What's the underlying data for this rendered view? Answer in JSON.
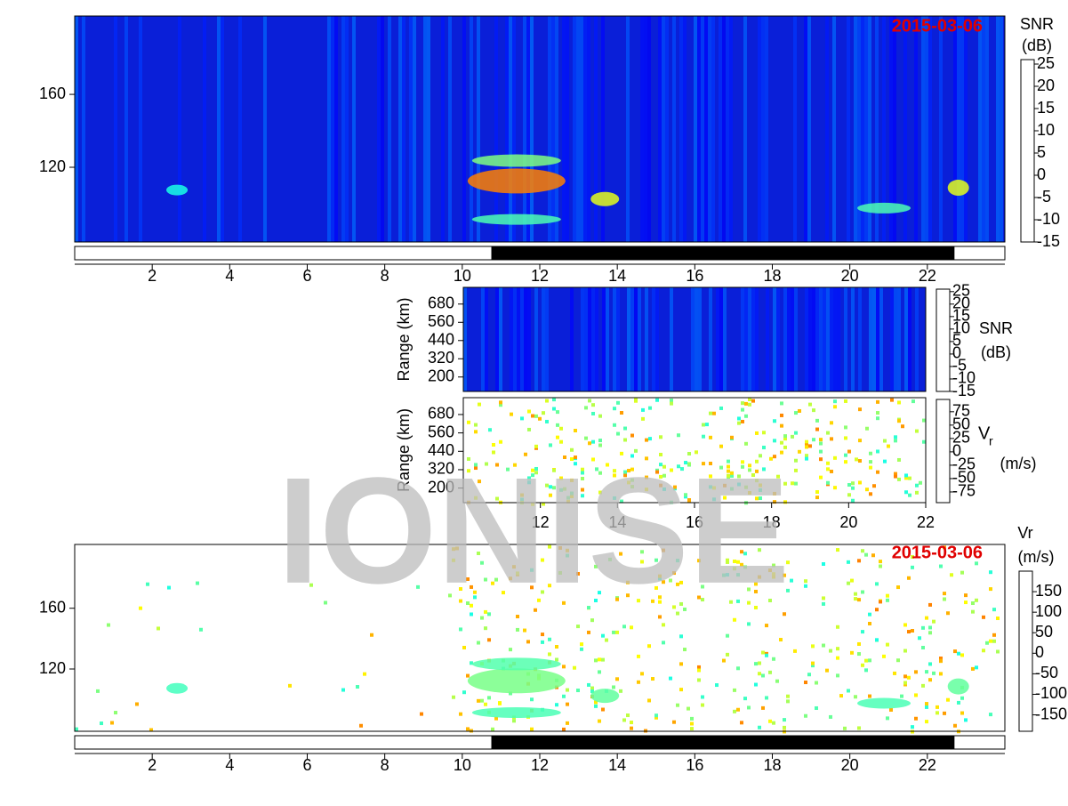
{
  "chart_data": [
    {
      "type": "heatmap",
      "kind": "snr",
      "date": "2015-03-06",
      "colorbar_label": [
        "SNR",
        "(dB)"
      ],
      "xlim": [
        0,
        24
      ],
      "xticks": [
        2,
        4,
        6,
        8,
        10,
        12,
        14,
        16,
        18,
        20,
        22
      ],
      "ylim": [
        79,
        203
      ],
      "yticks": [
        120,
        160
      ],
      "clim": [
        -15,
        26
      ],
      "cticks": [
        25,
        20,
        15,
        10,
        5,
        0,
        -5,
        -10,
        -15
      ],
      "night": [
        10.75,
        22.7
      ]
    },
    {
      "type": "heatmap",
      "kind": "snr",
      "ylabel": "Range (km)",
      "colorbar_label": [
        "SNR",
        "(dB)"
      ],
      "xlim": [
        10,
        22
      ],
      "ylim": [
        105,
        790
      ],
      "yticks": [
        200,
        320,
        440,
        560,
        680
      ],
      "clim": [
        -15,
        26
      ],
      "cticks": [
        25,
        20,
        15,
        10,
        5,
        0,
        -5,
        -10,
        -15
      ]
    },
    {
      "type": "heatmap",
      "kind": "vel",
      "ylabel": "Range (km)",
      "colorbar_label": [
        "V",
        "r",
        "(m/s)"
      ],
      "xlim": [
        10,
        22
      ],
      "xticks": [
        12,
        14,
        16,
        18,
        20,
        22
      ],
      "ylim": [
        105,
        790
      ],
      "yticks": [
        200,
        320,
        440,
        560,
        680
      ],
      "clim": [
        -95,
        98
      ],
      "cticks": [
        75,
        50,
        25,
        0,
        -25,
        -50,
        -75
      ]
    },
    {
      "type": "heatmap",
      "kind": "vel",
      "date": "2015-03-06",
      "colorbar_label": [
        "Vr",
        "(m/s)"
      ],
      "xlim": [
        0,
        24
      ],
      "xticks": [
        2,
        4,
        6,
        8,
        10,
        12,
        14,
        16,
        18,
        20,
        22
      ],
      "ylim": [
        79,
        202
      ],
      "yticks": [
        120,
        160
      ],
      "clim": [
        -190,
        200
      ],
      "cticks": [
        150,
        100,
        50,
        0,
        -50,
        -100,
        -150
      ],
      "night": [
        10.75,
        22.7
      ]
    }
  ],
  "watermark": "IONISE"
}
